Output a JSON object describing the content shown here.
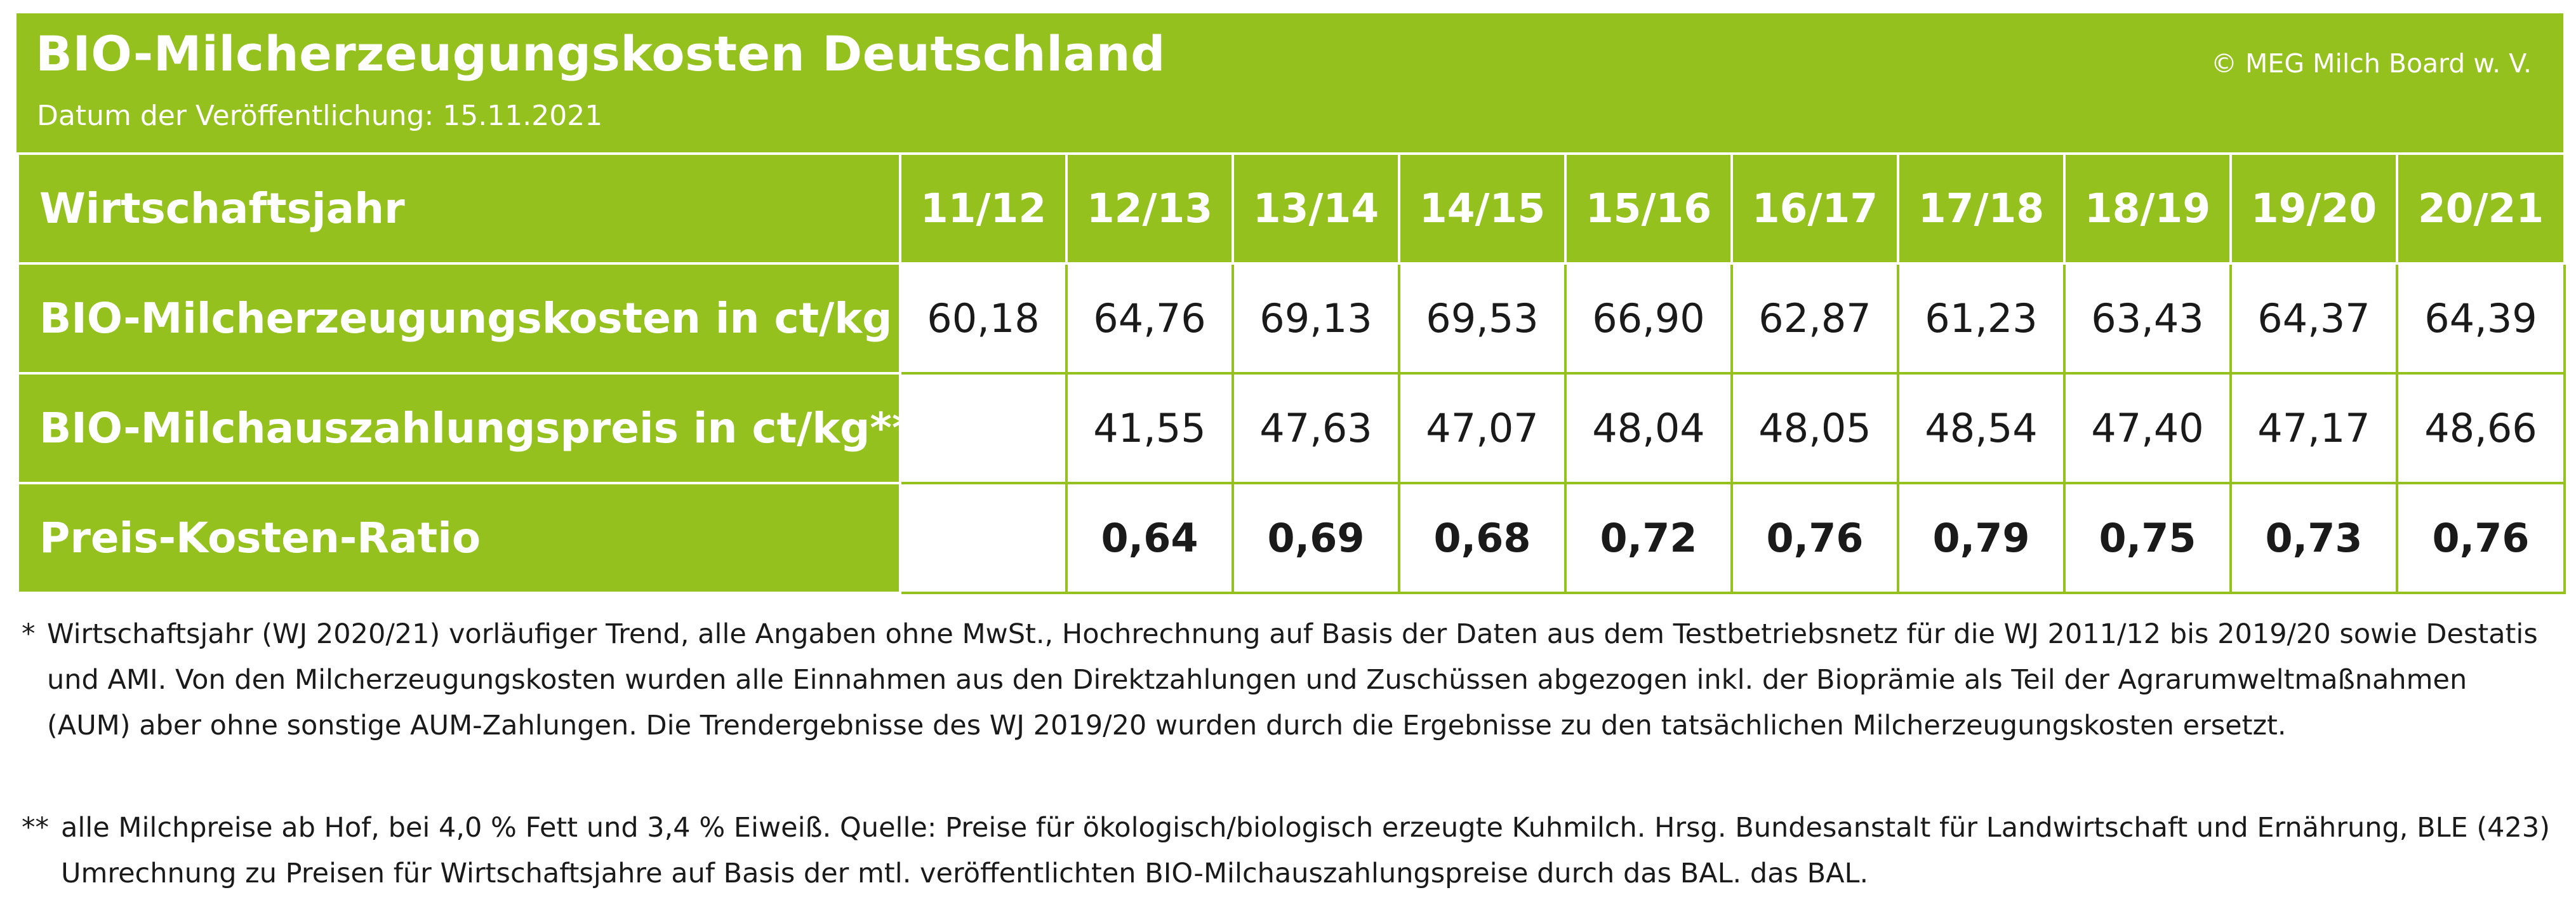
{
  "header": {
    "title": "BIO-Milcherzeugungskosten Deutschland",
    "subtitle": "Datum der Veröffentlichung: 15.11.2021",
    "copyright": "© MEG Milch Board w. V."
  },
  "colors": {
    "brand_green": "#95c11f",
    "cell_background": "#ffffff",
    "text_dark": "#1a1a1a"
  },
  "chart_data": {
    "type": "table",
    "title": "BIO-Milcherzeugungskosten Deutschland",
    "columns_label": "Wirtschaftsjahr",
    "columns": [
      "11/12",
      "12/13",
      "13/14",
      "14/15",
      "15/16",
      "16/17",
      "17/18",
      "18/19",
      "19/20",
      "20/21"
    ],
    "rows": [
      {
        "label": "BIO-Milcherzeugungskosten in ct/kg *",
        "values": [
          "60,18",
          "64,76",
          "69,13",
          "69,53",
          "66,90",
          "62,87",
          "61,23",
          "63,43",
          "64,37",
          "64,39"
        ]
      },
      {
        "label": "BIO-Milchauszahlungspreis in ct/kg**",
        "values": [
          "",
          "41,55",
          "47,63",
          "47,07",
          "48,04",
          "48,05",
          "48,54",
          "47,40",
          "47,17",
          "48,66"
        ]
      },
      {
        "label": "Preis-Kosten-Ratio",
        "values": [
          "",
          "0,64",
          "0,69",
          "0,68",
          "0,72",
          "0,76",
          "0,79",
          "0,75",
          "0,73",
          "0,76"
        ]
      }
    ]
  },
  "footnotes": [
    {
      "mark": "*",
      "text": "Wirtschaftsjahr (WJ 2020/21) vorläufiger Trend, alle Angaben ohne MwSt., Hochrechnung auf Basis der Daten aus dem Testbetriebsnetz für die WJ 2011/12 bis 2019/20 sowie Destatis und AMI. Von den Milcherzeugungskosten wurden alle Einnahmen aus den Direktzahlungen und Zuschüssen abgezogen inkl. der Bioprämie als Teil der Agrarumweltmaßnahmen (AUM) aber ohne sonstige AUM-Zahlungen. Die Trendergebnisse des WJ 2019/20 wurden durch die Ergebnisse zu den tatsächlichen Milcherzeugungskosten ersetzt."
    },
    {
      "mark": "**",
      "text": "alle Milchpreise ab Hof, bei 4,0 % Fett und 3,4 % Eiweiß. Quelle: Preise für ökologisch/biologisch erzeugte Kuhmilch. Hrsg. Bundesanstalt für Landwirtschaft und Ernährung, BLE (423) Umrechnung zu Preisen für Wirtschaftsjahre auf Basis der mtl. veröffentlichten BIO-Milchauszahlungspreise durch das BAL. das BAL."
    }
  ]
}
